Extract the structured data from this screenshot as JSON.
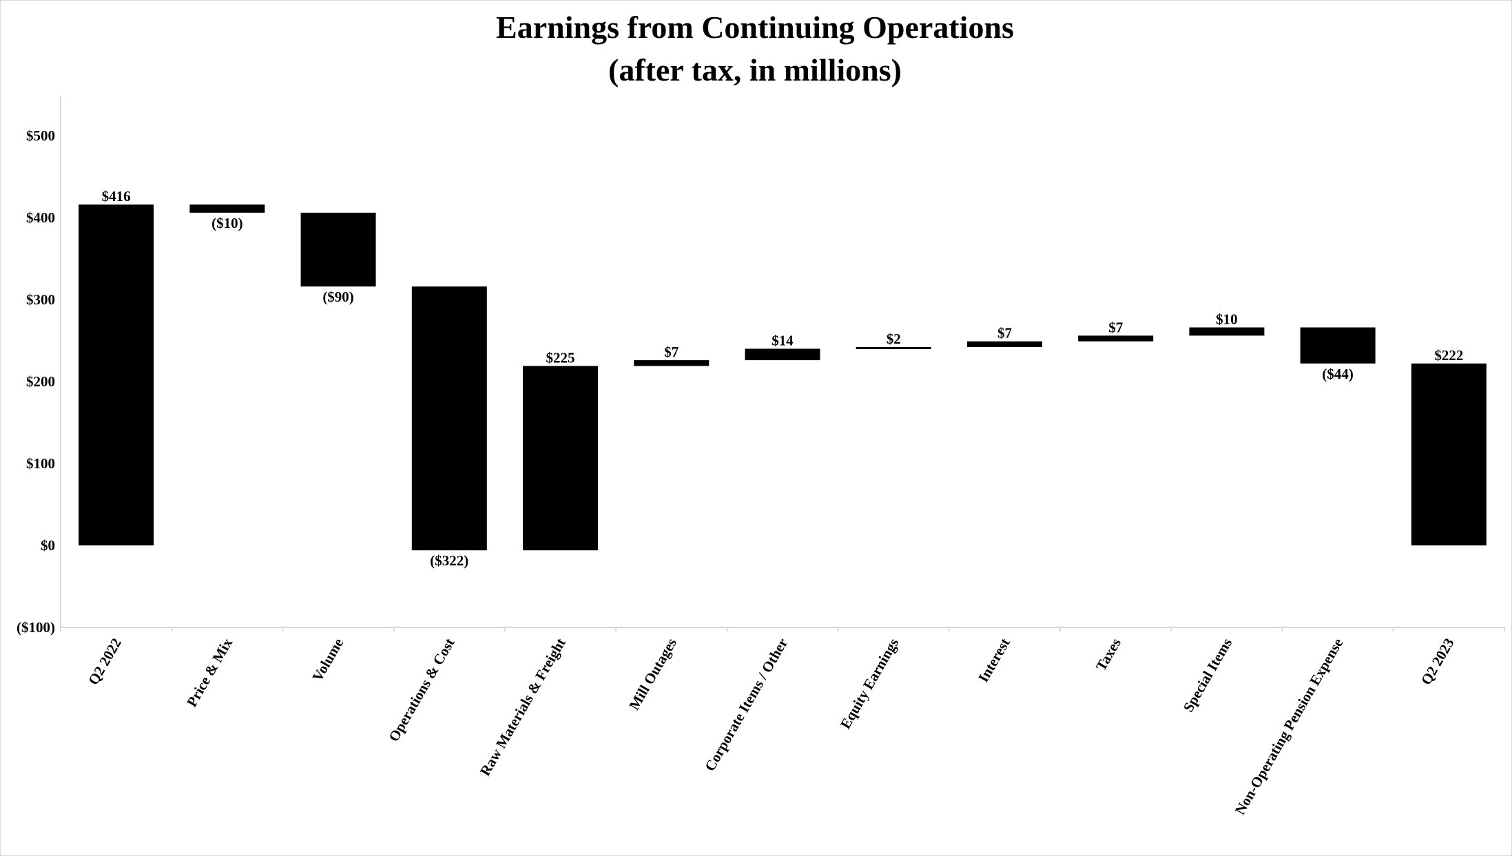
{
  "chart_data": {
    "type": "waterfall",
    "title": "Earnings from Continuing Operations",
    "subtitle": "(after tax, in millions)",
    "xlabel": "",
    "ylabel": "",
    "ylim": [
      -100,
      500
    ],
    "yticks": [
      -100,
      0,
      100,
      200,
      300,
      400,
      500
    ],
    "ytick_labels": [
      "($100)",
      "$0",
      "$100",
      "$200",
      "$300",
      "$400",
      "$500"
    ],
    "grid": false,
    "bar_color": "#000000",
    "categories": [
      "Q2 2022",
      "Price & Mix",
      "Volume",
      "Operations & Cost",
      "Raw Materials & Freight",
      "Mill Outages",
      "Corporate Items / Other",
      "Equity Earnings",
      "Interest",
      "Taxes",
      "Special Items",
      "Non-Operating Pension Expense",
      "Q2 2023"
    ],
    "values": [
      416,
      -10,
      -90,
      -322,
      225,
      7,
      14,
      2,
      7,
      7,
      10,
      -44,
      222
    ],
    "is_total": [
      true,
      false,
      false,
      false,
      false,
      false,
      false,
      false,
      false,
      false,
      false,
      false,
      true
    ],
    "data_labels": [
      "$416",
      "($10)",
      "($90)",
      "($322)",
      "$225",
      "$7",
      "$14",
      "$2",
      "$7",
      "$7",
      "$10",
      "($44)",
      "$222"
    ]
  }
}
